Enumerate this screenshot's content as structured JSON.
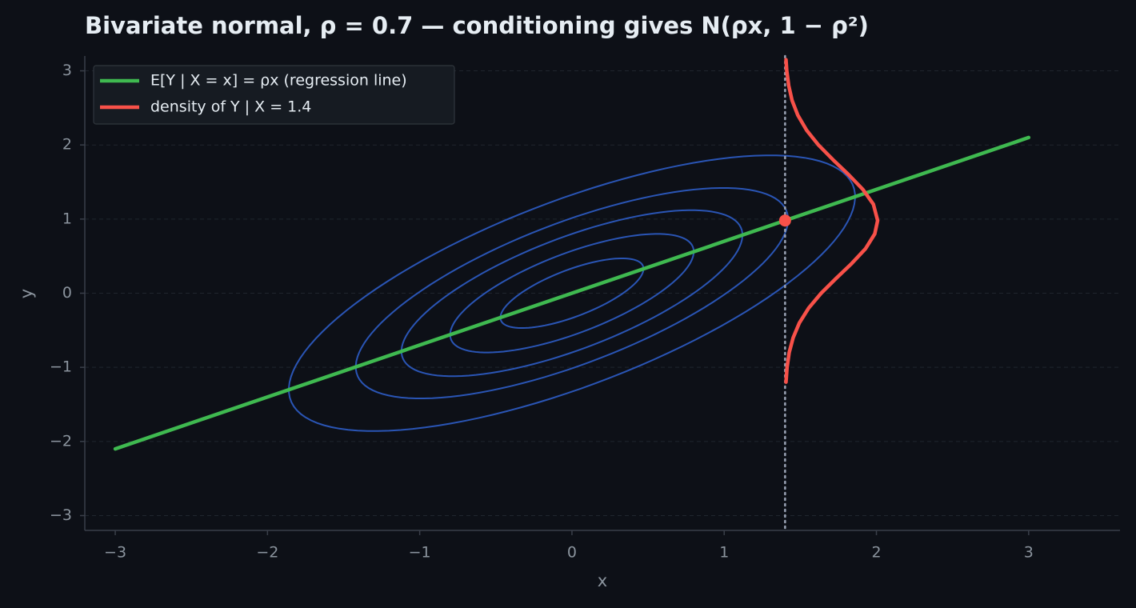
{
  "chart_data": {
    "type": "line",
    "title": "Bivariate normal, ρ = 0.7 — conditioning gives N(ρx, 1 − ρ²)",
    "x_label": "x",
    "y_label": "y",
    "xlim": [
      -3.2,
      3.6
    ],
    "ylim": [
      -3.2,
      3.2
    ],
    "xticks": [
      {
        "value": -3,
        "label": "−3"
      },
      {
        "value": -2,
        "label": "−2"
      },
      {
        "value": -1,
        "label": "−1"
      },
      0,
      1,
      2,
      3
    ],
    "yticks": [
      {
        "value": -3,
        "label": "−3"
      },
      {
        "value": -2,
        "label": "−2"
      },
      {
        "value": -1,
        "label": "−1"
      },
      0,
      1,
      2,
      3
    ],
    "grid": true,
    "legend": "upper left",
    "rho": 0.7,
    "contours": {
      "color": "#2a55b5",
      "levels": [
        0.47,
        0.8,
        1.12,
        1.42,
        1.86
      ]
    },
    "vline": {
      "x": 1.4,
      "color": "#9aa3b5"
    },
    "point": {
      "x": 1.4,
      "y": 0.98,
      "color": "#f85149"
    },
    "series": [
      {
        "name": "E[Y | X = x] = ρx (regression line)",
        "color": "#3fb950",
        "x": [
          -3,
          3
        ],
        "values": [
          -2.1,
          2.1
        ]
      },
      {
        "name": "density of Y | X = 1.4",
        "color": "#f85149",
        "x": [
          1.406,
          1.413,
          1.427,
          1.453,
          1.494,
          1.555,
          1.637,
          1.735,
          1.837,
          1.928,
          1.989,
          2.008,
          1.98,
          1.911,
          1.817,
          1.715,
          1.619,
          1.541,
          1.484,
          1.446,
          1.424,
          1.411,
          1.406
        ],
        "values": [
          -1.2,
          -1.0,
          -0.8,
          -0.6,
          -0.4,
          -0.2,
          0,
          0.2,
          0.4,
          0.6,
          0.8,
          0.98,
          1.2,
          1.4,
          1.6,
          1.8,
          2.0,
          2.2,
          2.4,
          2.6,
          2.8,
          3.0,
          3.15
        ]
      }
    ]
  }
}
